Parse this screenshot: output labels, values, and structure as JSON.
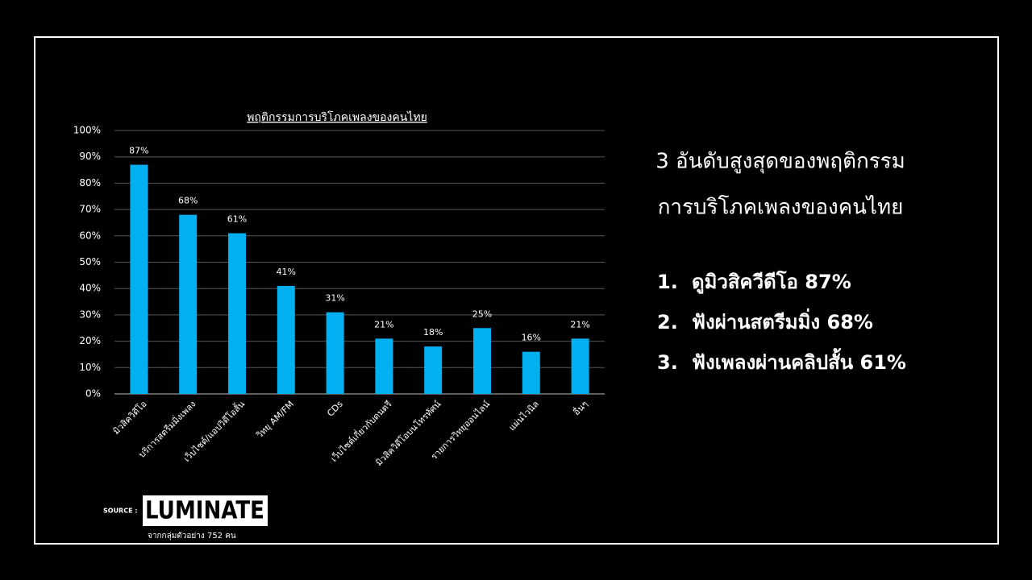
{
  "chart_data": {
    "type": "bar",
    "title": "พฤติกรรมการบริโภคเพลงของคนไทย",
    "categories": [
      "มิวสิควิดีโอ",
      "บริการสตรีมมิ่งเพลง",
      "เว็บไซต์/แอปวิดีโอสั้น",
      "วิทยุ AM/FM",
      "CDs",
      "เว็บไซต์เกี่ยวกับดนตรี",
      "มิวสิควิดีโอบนโทรทัศน์",
      "รายการวิทยุออนไลน์",
      "แผ่นไวนิล",
      "อื่นๆ"
    ],
    "values": [
      87,
      68,
      61,
      41,
      31,
      21,
      18,
      25,
      16,
      21
    ],
    "value_labels": [
      "87%",
      "68%",
      "61%",
      "41%",
      "31%",
      "21%",
      "18%",
      "25%",
      "16%",
      "21%"
    ],
    "color": "#00b0f0",
    "ylim": [
      0,
      100
    ],
    "yticks": [
      {
        "value": 0,
        "label": "0%"
      },
      {
        "value": 10,
        "label": "10%"
      },
      {
        "value": 20,
        "label": "20%"
      },
      {
        "value": 30,
        "label": "30%"
      },
      {
        "value": 40,
        "label": "40%"
      },
      {
        "value": 50,
        "label": "50%"
      },
      {
        "value": 60,
        "label": "60%"
      },
      {
        "value": 70,
        "label": "70%"
      },
      {
        "value": 80,
        "label": "80%"
      },
      {
        "value": 90,
        "label": "90%"
      },
      {
        "value": 100,
        "label": "100%"
      }
    ],
    "grid": true
  },
  "summary": {
    "heading": [
      "3 อันดับสูงสุดของพฤติกรรม",
      "การบริโภคเพลงของคนไทย"
    ],
    "items": [
      {
        "number": "1.",
        "text": "ดูมิวสิควีดีโอ 87%"
      },
      {
        "number": "2.",
        "text": "ฟังผ่านสตรีมมิ่ง 68%"
      },
      {
        "number": "3.",
        "text": "ฟังเพลงผ่านคลิปสั้น 61%"
      }
    ]
  },
  "source": {
    "label": "SOURCE :",
    "brand": "LUMINATE",
    "note": "จากกลุ่มตัวอย่าง 752 คน"
  }
}
